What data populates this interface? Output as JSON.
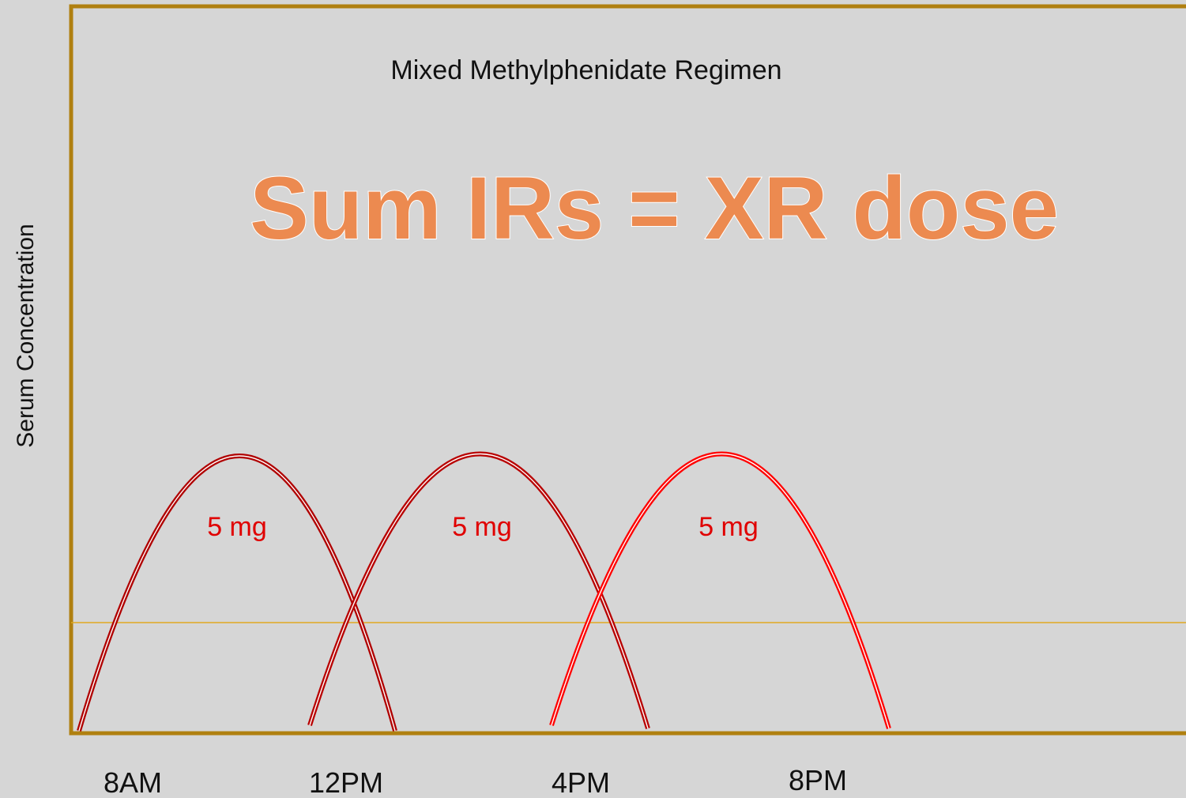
{
  "title": "Mixed Methylphenidate Regimen",
  "heading": "Sum IRs = XR dose",
  "y_axis_label": "Serum Concentration",
  "x_labels": [
    "8AM",
    "12PM",
    "4PM",
    "8PM"
  ],
  "dose_labels": [
    "5 mg",
    "5 mg",
    "5 mg"
  ]
}
